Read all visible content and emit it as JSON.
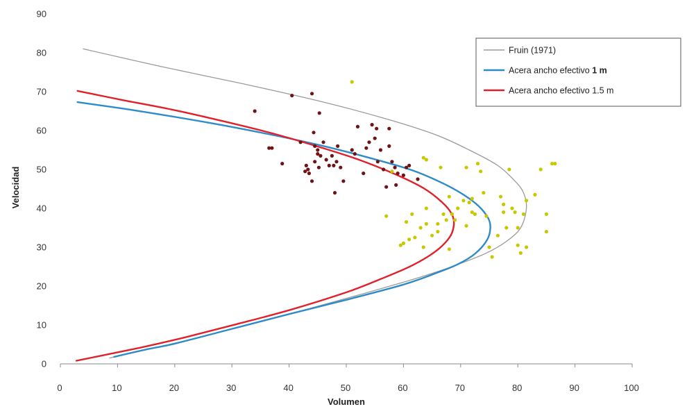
{
  "chart_data": {
    "type": "scatter",
    "title": "",
    "xlabel": "Volumen",
    "ylabel": "Velocidad",
    "xlim": [
      0,
      100
    ],
    "ylim": [
      0,
      90
    ],
    "x_ticks": [
      "0",
      "10",
      "20",
      "30",
      "40",
      "50",
      "60",
      "70",
      "80",
      "90",
      "100"
    ],
    "y_ticks": [
      "0",
      "10",
      "20",
      "30",
      "40",
      "50",
      "60",
      "70",
      "80",
      "90"
    ],
    "grid": false,
    "legend_position": "top-right",
    "legend": [
      {
        "label": "Fruin (1971)",
        "color": "#9a9a9a"
      },
      {
        "label": "Acera ancho efectivo ",
        "bold_suffix": "1 m",
        "color": "#2e8bc9"
      },
      {
        "label": "Acera ancho efectivo 1.5 m",
        "bold_suffix": "",
        "color": "#e0202a"
      }
    ],
    "curves": [
      {
        "color": "#9a9a9a",
        "width": 1.3,
        "points": [
          [
            8.6,
            1.5
          ],
          [
            13,
            3
          ],
          [
            20.5,
            5.5
          ],
          [
            30.2,
            9
          ],
          [
            40.5,
            13
          ],
          [
            50.4,
            17
          ],
          [
            60,
            21
          ],
          [
            66.5,
            24
          ],
          [
            70.3,
            26
          ],
          [
            74.5,
            28.5
          ],
          [
            78,
            31.5
          ],
          [
            80.5,
            35
          ],
          [
            81.5,
            40
          ],
          [
            81,
            44
          ],
          [
            79.5,
            47
          ],
          [
            76.5,
            51
          ],
          [
            71.5,
            55
          ],
          [
            65.5,
            59
          ],
          [
            57,
            63
          ],
          [
            45.5,
            67.5
          ],
          [
            32,
            72
          ],
          [
            17.5,
            76.5
          ],
          [
            4,
            81
          ]
        ]
      },
      {
        "color": "#2e8bc9",
        "width": 2.4,
        "points": [
          [
            9.4,
            1.8
          ],
          [
            15,
            3.7
          ],
          [
            20,
            5.2
          ],
          [
            30,
            9
          ],
          [
            40,
            12.8
          ],
          [
            49.8,
            16.4
          ],
          [
            60,
            20.4
          ],
          [
            66,
            23.5
          ],
          [
            69.5,
            25.6
          ],
          [
            72.5,
            28.3
          ],
          [
            74.6,
            31.8
          ],
          [
            75.2,
            35
          ],
          [
            74.8,
            37.5
          ],
          [
            73.2,
            40.5
          ],
          [
            70.5,
            43.5
          ],
          [
            66.8,
            46.5
          ],
          [
            61.5,
            49.8
          ],
          [
            54,
            53
          ],
          [
            45.5,
            56.2
          ],
          [
            36,
            59.2
          ],
          [
            25.6,
            62.1
          ],
          [
            12.5,
            65.3
          ],
          [
            3,
            67.3
          ]
        ]
      },
      {
        "color": "#e0202a",
        "width": 2.4,
        "points": [
          [
            2.8,
            0.8
          ],
          [
            8.8,
            2.6
          ],
          [
            15,
            4.5
          ],
          [
            22,
            6.9
          ],
          [
            30,
            9.9
          ],
          [
            40,
            13.8
          ],
          [
            50,
            18.4
          ],
          [
            56,
            21.8
          ],
          [
            61.5,
            25.3
          ],
          [
            65.5,
            28.8
          ],
          [
            68,
            32.4
          ],
          [
            68.8,
            35.5
          ],
          [
            68.5,
            38.4
          ],
          [
            66.8,
            41.5
          ],
          [
            63.5,
            45.2
          ],
          [
            58.5,
            48.8
          ],
          [
            52,
            52.6
          ],
          [
            45,
            55.9
          ],
          [
            37,
            59.3
          ],
          [
            28.5,
            62.4
          ],
          [
            19.5,
            65.4
          ],
          [
            11,
            67.8
          ],
          [
            3,
            70.2
          ]
        ]
      }
    ],
    "scatter_series": [
      {
        "color": "#6e1414",
        "points": [
          [
            34,
            65
          ],
          [
            36.5,
            55.5
          ],
          [
            37,
            55.5
          ],
          [
            38.8,
            51.5
          ],
          [
            40.5,
            69
          ],
          [
            42,
            57
          ],
          [
            42.8,
            49.5
          ],
          [
            43,
            51
          ],
          [
            43.3,
            50
          ],
          [
            43.5,
            49
          ],
          [
            44,
            69.5
          ],
          [
            44,
            47
          ],
          [
            44.3,
            59.5
          ],
          [
            44.5,
            56
          ],
          [
            44.5,
            52
          ],
          [
            45,
            54
          ],
          [
            45,
            55
          ],
          [
            45.2,
            50.5
          ],
          [
            45.3,
            64.5
          ],
          [
            45.5,
            53.5
          ],
          [
            46,
            57
          ],
          [
            46.5,
            52.5
          ],
          [
            47,
            51
          ],
          [
            47.5,
            53.5
          ],
          [
            47.8,
            51
          ],
          [
            48,
            44
          ],
          [
            48.3,
            52
          ],
          [
            48.5,
            56
          ],
          [
            49,
            50.5
          ],
          [
            49.5,
            47
          ],
          [
            51,
            55
          ],
          [
            51.5,
            54
          ],
          [
            52,
            61
          ],
          [
            53,
            49
          ],
          [
            53.5,
            55.5
          ],
          [
            54,
            57
          ],
          [
            54.5,
            61.5
          ],
          [
            55,
            58
          ],
          [
            55.3,
            60.5
          ],
          [
            55.5,
            52
          ],
          [
            56,
            55
          ],
          [
            56.5,
            50
          ],
          [
            57,
            45.5
          ],
          [
            57.5,
            56
          ],
          [
            57.5,
            60.5
          ],
          [
            58,
            52
          ],
          [
            58.5,
            50.5
          ],
          [
            58.7,
            46
          ],
          [
            59,
            49
          ],
          [
            60,
            48.5
          ],
          [
            60.5,
            50.5
          ],
          [
            61,
            51
          ],
          [
            62.5,
            47.5
          ]
        ]
      },
      {
        "color": "#c8c800",
        "points": [
          [
            51,
            72.5
          ],
          [
            57,
            38
          ],
          [
            58,
            49.5
          ],
          [
            59.5,
            30.5
          ],
          [
            60,
            31
          ],
          [
            60.5,
            36.5
          ],
          [
            61,
            32
          ],
          [
            61.5,
            38.5
          ],
          [
            62,
            32.5
          ],
          [
            63,
            35
          ],
          [
            63.5,
            53
          ],
          [
            63.5,
            30
          ],
          [
            64,
            40
          ],
          [
            64,
            36
          ],
          [
            64,
            52.5
          ],
          [
            65,
            33
          ],
          [
            66,
            36
          ],
          [
            66,
            34
          ],
          [
            66.5,
            50.5
          ],
          [
            67,
            38.5
          ],
          [
            67.5,
            37
          ],
          [
            68,
            43
          ],
          [
            68,
            29.5
          ],
          [
            68.5,
            38.5
          ],
          [
            69,
            37
          ],
          [
            69.5,
            40
          ],
          [
            70.5,
            42
          ],
          [
            71,
            50.5
          ],
          [
            71,
            35.5
          ],
          [
            71.5,
            41.5
          ],
          [
            72,
            42.5
          ],
          [
            72,
            39
          ],
          [
            72.5,
            38.5
          ],
          [
            73,
            51.5
          ],
          [
            73.5,
            49.5
          ],
          [
            74,
            44
          ],
          [
            74.5,
            38
          ],
          [
            75,
            30
          ],
          [
            75.5,
            27.5
          ],
          [
            76.5,
            33
          ],
          [
            77,
            43
          ],
          [
            77.5,
            41
          ],
          [
            77.5,
            39
          ],
          [
            78,
            35
          ],
          [
            78.5,
            50
          ],
          [
            79,
            40
          ],
          [
            79.5,
            39
          ],
          [
            80,
            30.5
          ],
          [
            80,
            35
          ],
          [
            80.5,
            28.5
          ],
          [
            81,
            38.5
          ],
          [
            81.5,
            42
          ],
          [
            81.5,
            30
          ],
          [
            83,
            43.5
          ],
          [
            84,
            50
          ],
          [
            85,
            38.5
          ],
          [
            85,
            34
          ],
          [
            86,
            51.5
          ],
          [
            86.5,
            51.5
          ]
        ]
      }
    ]
  }
}
